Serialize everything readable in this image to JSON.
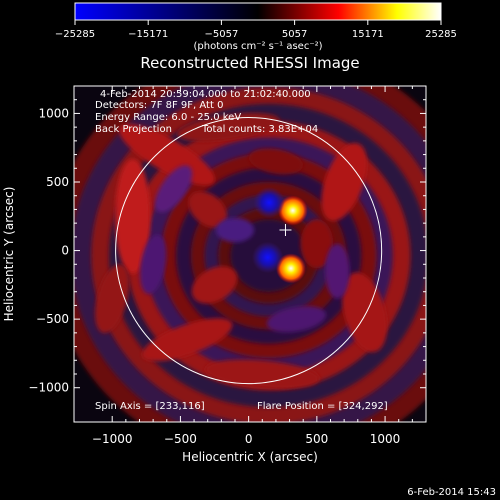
{
  "chart_data": {
    "type": "heatmap",
    "title": "Reconstructed RHESSI Image",
    "xlabel": "Heliocentric X (arcsec)",
    "ylabel": "Heliocentric Y (arcsec)",
    "xlim": [
      -1280,
      1300
    ],
    "ylim": [
      -1250,
      1200
    ],
    "xticks": [
      -1000,
      -500,
      0,
      500,
      1000
    ],
    "yticks": [
      -1000,
      -500,
      0,
      500,
      1000
    ],
    "colorbar": {
      "ticks": [
        -25285,
        -15171,
        -5057,
        5057,
        15171,
        25285
      ],
      "units": "(photons cm⁻² s⁻¹ asec⁻²)",
      "colors": [
        "#0000ff",
        "#000000",
        "#ff0000",
        "#ffff00",
        "#ffffff"
      ]
    },
    "annotations": {
      "time_range": "4-Feb-2014 20:59:04.000 to 21:02:40.000",
      "detectors": "Detectors: 7F 8F 9F, Att 0",
      "energy_range": "Energy Range: 6.0 - 25.0 keV",
      "method": "Back Projection",
      "total_counts": "Total counts: 3.83E+04",
      "spin_axis": "Spin Axis = [233,116]",
      "flare_position": "Flare Position = [324,292]"
    },
    "solar_limb": {
      "center": [
        0,
        0
      ],
      "radius": 975
    },
    "sources": [
      {
        "x": 324,
        "y": 292,
        "intensity": 25285
      },
      {
        "x": 310,
        "y": -130,
        "intensity": 22000
      },
      {
        "x": 150,
        "y": 350,
        "intensity": -25285
      },
      {
        "x": 140,
        "y": -50,
        "intensity": -25285
      }
    ]
  },
  "footer": {
    "timestamp": "6-Feb-2014 15:43"
  }
}
